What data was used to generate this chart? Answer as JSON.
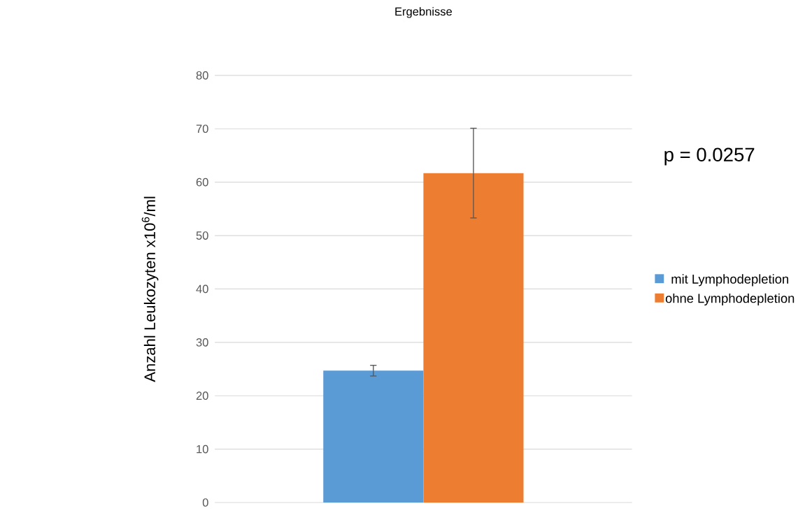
{
  "chart_data": {
    "type": "bar",
    "title": "Ergebnisse",
    "ylabel": "Anzahl Leukozyten x10$^{6}$/ml",
    "categories": [
      null
    ],
    "series": [
      {
        "name": "mit Lymphodepletion",
        "color": "#5b9bd5",
        "values": [
          24.7
        ],
        "errors": [
          1.0
        ]
      },
      {
        "name": "ohne Lymphodepletion",
        "color": "#ed7d31",
        "values": [
          61.7
        ],
        "errors": [
          8.4
        ]
      }
    ],
    "ylim": [
      0,
      80
    ],
    "yticks": [
      0,
      10,
      20,
      30,
      40,
      50,
      60,
      70,
      80
    ],
    "grid": "y",
    "legend": "right",
    "annotations": [
      "p = 0.0257"
    ]
  }
}
